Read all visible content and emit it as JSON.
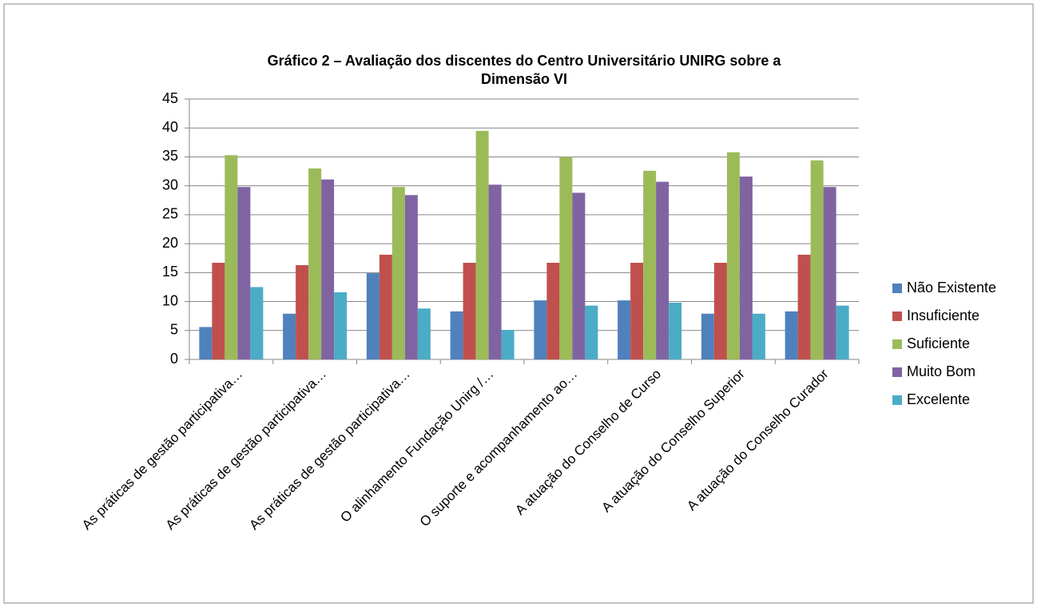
{
  "chart_data": {
    "type": "bar",
    "title": [
      "Gráfico 2 –  Avaliação dos discentes do  Centro Universitário UNIRG sobre a",
      "Dimensão VI"
    ],
    "categories": [
      "As práticas de gestão participativa…",
      "As práticas de gestão participativa…",
      "As práticas de gestão participativa…",
      "O alinhamento Fundação Unirg /…",
      "O suporte e acompanhamento ao…",
      "A atuação do Conselho de Curso",
      "A atuação do Conselho Superior",
      "A atuação do Conselho Curador"
    ],
    "series": [
      {
        "name": "Não Existente",
        "color": "#4f81bd",
        "values": [
          5.6,
          7.9,
          14.9,
          8.3,
          10.2,
          10.2,
          7.9,
          8.3
        ]
      },
      {
        "name": "Insuficiente",
        "color": "#c0504d",
        "values": [
          16.7,
          16.3,
          18.1,
          16.7,
          16.7,
          16.7,
          16.7,
          18.1
        ]
      },
      {
        "name": "Suficiente",
        "color": "#9bbb59",
        "values": [
          35.3,
          33.0,
          29.8,
          39.5,
          35.0,
          32.6,
          35.8,
          34.4
        ]
      },
      {
        "name": "Muito Bom",
        "color": "#8064a2",
        "values": [
          29.8,
          31.1,
          28.4,
          30.2,
          28.8,
          30.7,
          31.6,
          29.8
        ]
      },
      {
        "name": "Excelente",
        "color": "#4bacc6",
        "values": [
          12.5,
          11.6,
          8.8,
          5.1,
          9.3,
          9.8,
          7.9,
          9.3
        ]
      }
    ],
    "ylim": [
      0,
      45
    ],
    "yticks": [
      0,
      5,
      10,
      15,
      20,
      25,
      30,
      35,
      40,
      45
    ],
    "grid": true,
    "legend": "right"
  }
}
